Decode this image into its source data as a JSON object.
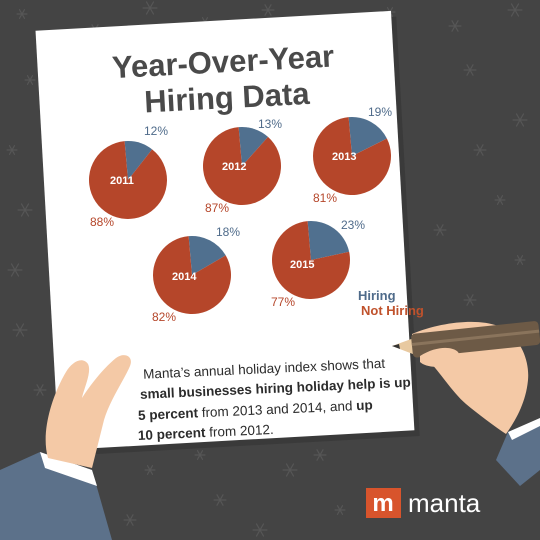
{
  "page": {
    "title_line1": "Year-Over-Year",
    "title_line2": "Hiring Data",
    "body_line1": "Manta’s annual holiday index shows that",
    "body_line2_bold": "small businesses hiring holiday help is up",
    "body_line3_bold": "5 percent",
    "body_line3_rest": " from 2013 and 2014, and ",
    "body_line3_bold2": "up",
    "body_line4_bold": "10 percent",
    "body_line4_rest": " from 2012.",
    "logo_mark": "m",
    "logo_text": "manta"
  },
  "colors": {
    "hiring": "#50708f",
    "not_hiring": "#b5462a",
    "background": "#444444",
    "brand": "#d8542c"
  },
  "chart_data": {
    "type": "pie",
    "legend": {
      "labels": [
        "Hiring",
        "Not Hiring"
      ],
      "position": "bottom-right"
    },
    "pies": [
      {
        "year": "2011",
        "hiring": 12,
        "not_hiring": 88,
        "hiring_label": "12%",
        "not_hiring_label": "88%"
      },
      {
        "year": "2012",
        "hiring": 13,
        "not_hiring": 87,
        "hiring_label": "13%",
        "not_hiring_label": "87%"
      },
      {
        "year": "2013",
        "hiring": 19,
        "not_hiring": 81,
        "hiring_label": "19%",
        "not_hiring_label": "81%"
      },
      {
        "year": "2014",
        "hiring": 18,
        "not_hiring": 82,
        "hiring_label": "18%",
        "not_hiring_label": "82%"
      },
      {
        "year": "2015",
        "hiring": 23,
        "not_hiring": 77,
        "hiring_label": "23%",
        "not_hiring_label": "77%"
      }
    ]
  }
}
